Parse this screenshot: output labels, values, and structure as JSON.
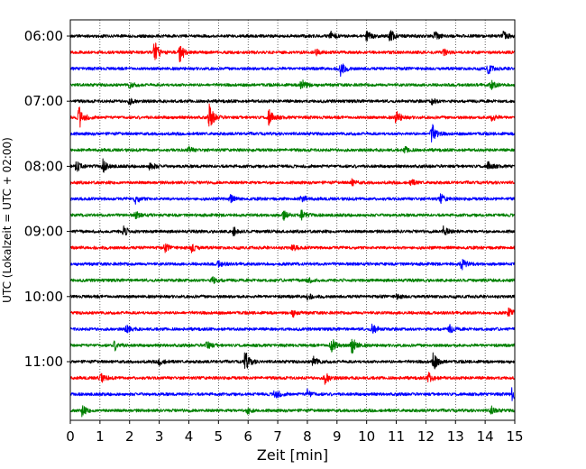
{
  "chart_data": {
    "type": "line",
    "title": "",
    "xlabel": "Zeit  [min]",
    "ylabel": "UTC (Lokalzeit = UTC + 02:00)",
    "xlim": [
      0,
      15
    ],
    "xticks": [
      0,
      1,
      2,
      3,
      4,
      5,
      6,
      7,
      8,
      9,
      10,
      11,
      12,
      13,
      14,
      15
    ],
    "x_gridlines": "dotted",
    "y_tick_labels": [
      "06:00",
      "07:00",
      "08:00",
      "09:00",
      "10:00",
      "11:00"
    ],
    "trace_duration_min": 15,
    "trace_color_cycle": [
      "#000000",
      "#ff0000",
      "#0000ff",
      "#008000"
    ],
    "traces": [
      {
        "start": "06:00",
        "color": "#000000",
        "events": [
          {
            "t": 8.8,
            "amp": 0.5
          },
          {
            "t": 10.0,
            "amp": 0.55
          },
          {
            "t": 10.8,
            "amp": 0.6
          },
          {
            "t": 12.3,
            "amp": 0.55
          },
          {
            "t": 14.6,
            "amp": 0.5
          }
        ]
      },
      {
        "start": "06:15",
        "color": "#ff0000",
        "events": [
          {
            "t": 2.85,
            "amp": 1.2
          },
          {
            "t": 3.7,
            "amp": 1.0
          },
          {
            "t": 8.3,
            "amp": 0.3
          },
          {
            "t": 12.6,
            "amp": 0.3
          }
        ]
      },
      {
        "start": "06:30",
        "color": "#0000ff",
        "events": [
          {
            "t": 9.1,
            "amp": 0.8
          },
          {
            "t": 14.1,
            "amp": 0.5
          }
        ]
      },
      {
        "start": "06:45",
        "color": "#008000",
        "events": [
          {
            "t": 7.8,
            "amp": 0.7
          },
          {
            "t": 14.2,
            "amp": 0.45
          },
          {
            "t": 2.0,
            "amp": 0.3
          }
        ]
      },
      {
        "start": "07:00",
        "color": "#000000",
        "events": [
          {
            "t": 2.0,
            "amp": 0.3
          },
          {
            "t": 12.2,
            "amp": 0.3
          }
        ]
      },
      {
        "start": "07:15",
        "color": "#ff0000",
        "events": [
          {
            "t": 0.3,
            "amp": 1.1
          },
          {
            "t": 4.7,
            "amp": 1.3
          },
          {
            "t": 6.7,
            "amp": 0.9
          },
          {
            "t": 11.0,
            "amp": 0.7
          },
          {
            "t": 14.2,
            "amp": 0.45
          }
        ]
      },
      {
        "start": "07:30",
        "color": "#0000ff",
        "events": [
          {
            "t": 12.2,
            "amp": 1.0
          }
        ]
      },
      {
        "start": "07:45",
        "color": "#008000",
        "events": [
          {
            "t": 4.0,
            "amp": 0.3
          },
          {
            "t": 11.3,
            "amp": 0.3
          }
        ]
      },
      {
        "start": "08:00",
        "color": "#000000",
        "events": [
          {
            "t": 0.2,
            "amp": 0.65
          },
          {
            "t": 1.1,
            "amp": 0.65
          },
          {
            "t": 2.7,
            "amp": 0.45
          },
          {
            "t": 14.1,
            "amp": 0.45
          }
        ]
      },
      {
        "start": "08:15",
        "color": "#ff0000",
        "events": [
          {
            "t": 9.5,
            "amp": 0.3
          },
          {
            "t": 11.5,
            "amp": 0.3
          }
        ]
      },
      {
        "start": "08:30",
        "color": "#0000ff",
        "events": [
          {
            "t": 2.2,
            "amp": 0.45
          },
          {
            "t": 5.4,
            "amp": 0.35
          },
          {
            "t": 7.8,
            "amp": 0.4
          },
          {
            "t": 12.5,
            "amp": 0.45
          }
        ]
      },
      {
        "start": "08:45",
        "color": "#008000",
        "events": [
          {
            "t": 7.2,
            "amp": 0.45
          },
          {
            "t": 7.8,
            "amp": 0.5
          },
          {
            "t": 2.2,
            "amp": 0.35
          }
        ]
      },
      {
        "start": "09:00",
        "color": "#000000",
        "events": [
          {
            "t": 1.8,
            "amp": 0.5
          },
          {
            "t": 5.5,
            "amp": 0.45
          },
          {
            "t": 12.6,
            "amp": 0.5
          }
        ]
      },
      {
        "start": "09:15",
        "color": "#ff0000",
        "events": [
          {
            "t": 3.2,
            "amp": 0.35
          },
          {
            "t": 4.1,
            "amp": 0.45
          },
          {
            "t": 7.5,
            "amp": 0.3
          }
        ]
      },
      {
        "start": "09:30",
        "color": "#0000ff",
        "events": [
          {
            "t": 13.2,
            "amp": 0.6
          },
          {
            "t": 5.0,
            "amp": 0.3
          }
        ]
      },
      {
        "start": "09:45",
        "color": "#008000",
        "events": [
          {
            "t": 8.0,
            "amp": 0.3
          },
          {
            "t": 4.8,
            "amp": 0.35
          }
        ]
      },
      {
        "start": "10:00",
        "color": "#000000",
        "events": [
          {
            "t": 8.0,
            "amp": 0.3
          },
          {
            "t": 11.0,
            "amp": 0.25
          }
        ]
      },
      {
        "start": "10:15",
        "color": "#ff0000",
        "events": [
          {
            "t": 7.5,
            "amp": 0.35
          },
          {
            "t": 14.8,
            "amp": 0.45
          }
        ]
      },
      {
        "start": "10:30",
        "color": "#0000ff",
        "events": [
          {
            "t": 10.2,
            "amp": 0.55
          },
          {
            "t": 1.9,
            "amp": 0.4
          },
          {
            "t": 12.8,
            "amp": 0.4
          }
        ]
      },
      {
        "start": "10:45",
        "color": "#008000",
        "events": [
          {
            "t": 1.5,
            "amp": 0.45
          },
          {
            "t": 4.6,
            "amp": 0.45
          },
          {
            "t": 8.8,
            "amp": 0.9
          },
          {
            "t": 9.5,
            "amp": 1.0
          }
        ]
      },
      {
        "start": "11:00",
        "color": "#000000",
        "events": [
          {
            "t": 5.9,
            "amp": 1.1
          },
          {
            "t": 8.2,
            "amp": 0.55
          },
          {
            "t": 12.25,
            "amp": 0.9
          },
          {
            "t": 3.0,
            "amp": 0.35
          }
        ]
      },
      {
        "start": "11:15",
        "color": "#ff0000",
        "events": [
          {
            "t": 1.0,
            "amp": 0.55
          },
          {
            "t": 8.6,
            "amp": 0.6
          },
          {
            "t": 12.1,
            "amp": 0.55
          }
        ]
      },
      {
        "start": "11:30",
        "color": "#0000ff",
        "events": [
          {
            "t": 6.9,
            "amp": 0.6
          },
          {
            "t": 8.0,
            "amp": 0.4
          },
          {
            "t": 14.9,
            "amp": 0.6
          }
        ]
      },
      {
        "start": "11:45",
        "color": "#008000",
        "events": [
          {
            "t": 0.4,
            "amp": 0.5
          },
          {
            "t": 6.0,
            "amp": 0.35
          },
          {
            "t": 14.2,
            "amp": 0.4
          }
        ]
      }
    ]
  }
}
